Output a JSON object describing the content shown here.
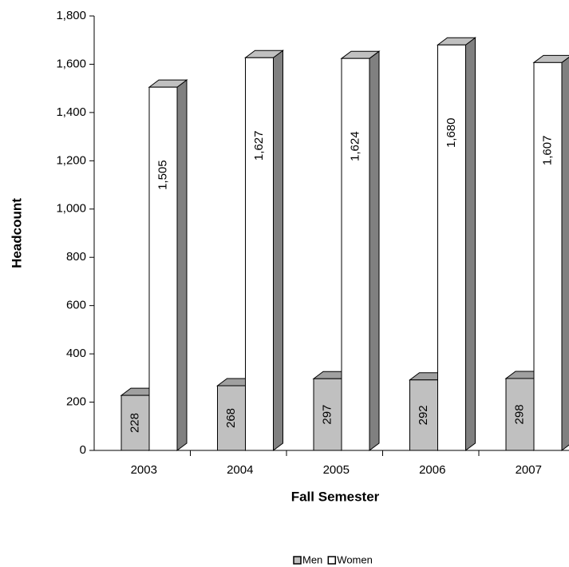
{
  "chart_data": {
    "type": "bar3d",
    "x_label": "Fall Semester",
    "y_label": "Headcount",
    "categories": [
      "2003",
      "2004",
      "2005",
      "2006",
      "2007"
    ],
    "series": [
      {
        "name": "Men",
        "color": "#c0c0c0",
        "values": [
          228,
          268,
          297,
          292,
          298
        ]
      },
      {
        "name": "Women",
        "color": "#ffffff",
        "values": [
          1505,
          1627,
          1624,
          1680,
          1607
        ],
        "value_labels": [
          "1,505",
          "1,627",
          "1,624",
          "1,680",
          "1,607"
        ]
      }
    ],
    "ylim": [
      0,
      1800
    ],
    "yticks": [
      0,
      200,
      400,
      600,
      800,
      {
        "value": 1000,
        "label": "1,000"
      },
      {
        "value": 1200,
        "label": "1,200"
      },
      {
        "value": 1400,
        "label": "1,400"
      },
      {
        "value": 1600,
        "label": "1,600"
      },
      {
        "value": 1800,
        "label": "1,800"
      }
    ],
    "legend": "bottom"
  }
}
